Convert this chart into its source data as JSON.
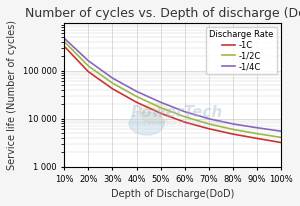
{
  "title": "Number of cycles vs. Depth of discharge (DoD)",
  "xlabel": "Depth of Discharge(DoD)",
  "ylabel": "Service life (Number of cycles)",
  "legend_title": "Discharge Rate",
  "legend_labels": [
    "-1C",
    "-1/2C",
    "-1/4C"
  ],
  "line_colors": [
    "#cc3333",
    "#99bb44",
    "#8866bb"
  ],
  "x_ticks": [
    0.1,
    0.2,
    0.3,
    0.4,
    0.5,
    0.6,
    0.7,
    0.8,
    0.9,
    1.0
  ],
  "x_tick_labels": [
    "10%",
    "20%",
    "30%",
    "40%",
    "50%",
    "60%",
    "70%",
    "80%",
    "90%",
    "100%"
  ],
  "ylim_log": [
    1000,
    1000000
  ],
  "y_ticks": [
    1000,
    10000,
    100000
  ],
  "y_tick_labels": [
    "1 000",
    "10 000",
    "100 000"
  ],
  "background_color": "#f5f5f5",
  "plot_bg": "#ffffff",
  "grid_color": "#cccccc",
  "dod_1C": [
    0.1,
    0.2,
    0.3,
    0.4,
    0.5,
    0.6,
    0.7,
    0.8,
    0.9,
    1.0
  ],
  "cyc_1C": [
    320000,
    95000,
    42000,
    22000,
    13000,
    8500,
    6200,
    4800,
    3900,
    3200
  ],
  "cyc_half": [
    400000,
    125000,
    55000,
    29000,
    17000,
    11000,
    7800,
    6000,
    4900,
    4100
  ],
  "cyc_qtr": [
    470000,
    160000,
    70000,
    37000,
    22000,
    14000,
    10000,
    7800,
    6500,
    5500
  ],
  "title_fontsize": 9,
  "axis_label_fontsize": 7,
  "tick_fontsize": 6,
  "legend_fontsize": 6
}
